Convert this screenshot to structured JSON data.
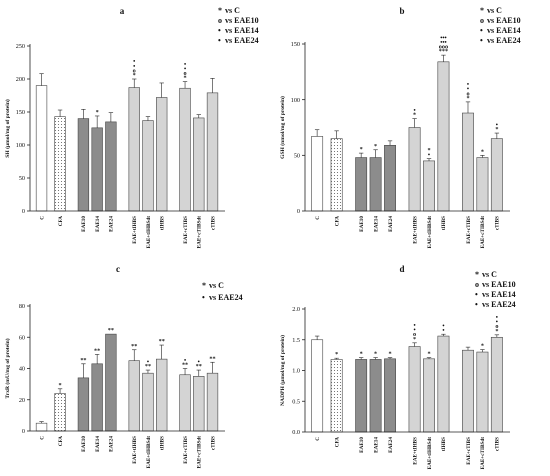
{
  "charts": [
    {
      "key": "a",
      "type": "bar",
      "panel_label": "a",
      "ylabel": "SH (µmol/mg of protein)",
      "ylim": [
        0,
        250
      ],
      "yticks": [
        0,
        50,
        100,
        150,
        200,
        250
      ],
      "legend": [
        {
          "marker": "*",
          "text": "vs C"
        },
        {
          "marker": "o",
          "text": "vs EAE10"
        },
        {
          "marker": "•",
          "text": "vs EAE14"
        },
        {
          "marker": "•",
          "text": "vs EAE24"
        }
      ],
      "categories": [
        "C",
        "CFA",
        "EAE10",
        "EAE14",
        "EAE24",
        "EAE+tIHBS",
        "EAE+tIHBSdt",
        "tIHBS",
        "EAE+cTIBS",
        "EAE+cTIBSdt",
        "cTIBS"
      ],
      "values": [
        190,
        143,
        140,
        126,
        135,
        187,
        137,
        172,
        186,
        141,
        179
      ],
      "errors": [
        18,
        10,
        14,
        18,
        14,
        13,
        6,
        22,
        10,
        5,
        22
      ],
      "styles": [
        "white",
        "dots",
        "dgray",
        "dgray",
        "dgray",
        "lgray",
        "lgray",
        "lgray",
        "lgray",
        "lgray",
        "lgray"
      ],
      "annotations": [
        "",
        "",
        "",
        "*",
        "",
        "•\n•\no\n*",
        "",
        "",
        "•\n•\no\n*",
        "",
        ""
      ]
    },
    {
      "key": "b",
      "type": "bar",
      "panel_label": "b",
      "ylabel": "GSH (nmol/mg of protein)",
      "ylim": [
        0,
        150
      ],
      "yticks": [
        0,
        50,
        100,
        150
      ],
      "legend": [
        {
          "marker": "*",
          "text": "vs C"
        },
        {
          "marker": "o",
          "text": "vs EAE10"
        },
        {
          "marker": "•",
          "text": "vs EAE14"
        },
        {
          "marker": "•",
          "text": "vs EAE24"
        }
      ],
      "categories": [
        "C",
        "CFA",
        "EAE10",
        "EAE14",
        "EAE24",
        "EAE+tIHBS",
        "EAE+tIHBSdt",
        "tIHBS",
        "EAE+cTIBS",
        "EAE+cTIBSdt",
        "cTIBS"
      ],
      "values": [
        67,
        65,
        48,
        48,
        59,
        75,
        45,
        134,
        88,
        48,
        65
      ],
      "errors": [
        6,
        7,
        4,
        7,
        4,
        8,
        2,
        6,
        10,
        2,
        5
      ],
      "styles": [
        "white",
        "dots",
        "dgray",
        "dgray",
        "dgray",
        "lgray",
        "lgray",
        "lgray",
        "lgray",
        "lgray",
        "lgray"
      ],
      "annotations": [
        "",
        "",
        "*",
        "*",
        "",
        "•\n*",
        "*\n•",
        "•••\n•••\nooo\n***",
        "•\n•\no\n*",
        "*",
        "•\n*"
      ]
    },
    {
      "key": "c",
      "type": "bar",
      "panel_label": "c",
      "ylabel": "TrxR (mU/mg of protein)",
      "ylim": [
        0,
        80
      ],
      "yticks": [
        0,
        20,
        40,
        60,
        80
      ],
      "legend": [
        {
          "marker": "*",
          "text": "vs C"
        },
        {
          "marker": "•",
          "text": "vs EAE24"
        }
      ],
      "categories": [
        "C",
        "CFA",
        "EAE10",
        "EAE14",
        "EAE24",
        "EAE+tIHBS",
        "EAE+tIHBSdt",
        "tIHBS",
        "EAE+cTIBS",
        "EAE+cTIBSdt",
        "cTIBS"
      ],
      "values": [
        5,
        24,
        34,
        43,
        62,
        45,
        37,
        46,
        36,
        35,
        37
      ],
      "errors": [
        1,
        3,
        9,
        6,
        0,
        7,
        2,
        9,
        4,
        4,
        7
      ],
      "styles": [
        "white",
        "dots",
        "dgray",
        "dgray",
        "dgray",
        "lgray",
        "lgray",
        "lgray",
        "lgray",
        "lgray",
        "lgray"
      ],
      "annotations": [
        "",
        "*",
        "**",
        "**",
        "**",
        "**",
        "•\n**",
        "**",
        "•\n**",
        "•\n**",
        "**"
      ]
    },
    {
      "key": "d",
      "type": "bar",
      "panel_label": "d",
      "ylabel": "NADPH (µmol/mg of protein)",
      "ylim": [
        0,
        2.0
      ],
      "yticks": [
        0.0,
        0.5,
        1.0,
        1.5,
        2.0
      ],
      "legend": [
        {
          "marker": "*",
          "text": "vs C"
        },
        {
          "marker": "o",
          "text": "vs EAE10"
        },
        {
          "marker": "•",
          "text": "vs EAE14"
        },
        {
          "marker": "•",
          "text": "vs EAE24"
        }
      ],
      "categories": [
        "C",
        "CFA",
        "EAE10",
        "EAE14",
        "EAE24",
        "EAE+tIHBS",
        "EAE+tIHBSdt",
        "tIHBS",
        "EAE+cTIBS",
        "EAE+cTIBSdt",
        "cTIBS"
      ],
      "values": [
        1.5,
        1.18,
        1.18,
        1.18,
        1.19,
        1.39,
        1.19,
        1.56,
        1.33,
        1.3,
        1.54
      ],
      "errors": [
        0.06,
        0.02,
        0.03,
        0.03,
        0.02,
        0.06,
        0.02,
        0.03,
        0.05,
        0.04,
        0.04
      ],
      "styles": [
        "white",
        "dots",
        "dgray",
        "dgray",
        "dgray",
        "lgray",
        "lgray",
        "lgray",
        "lgray",
        "lgray",
        "lgray"
      ],
      "annotations": [
        "",
        "*",
        "*",
        "*",
        "*",
        "•\n•\no\n*",
        "*",
        "•\n•",
        "",
        "*",
        "•\n•\no\n*"
      ]
    }
  ],
  "chart_data": [
    {
      "type": "bar",
      "title": "a",
      "ylabel": "SH (µmol/mg of protein)",
      "ylim": [
        0,
        250
      ],
      "categories": [
        "C",
        "CFA",
        "EAE10",
        "EAE14",
        "EAE24",
        "EAE+tIHBS",
        "EAE+tIHBSdt",
        "tIHBS",
        "EAE+cTIBS",
        "EAE+cTIBSdt",
        "cTIBS"
      ],
      "values": [
        190,
        143,
        140,
        126,
        135,
        187,
        137,
        172,
        186,
        141,
        179
      ]
    },
    {
      "type": "bar",
      "title": "b",
      "ylabel": "GSH (nmol/mg of protein)",
      "ylim": [
        0,
        150
      ],
      "categories": [
        "C",
        "CFA",
        "EAE10",
        "EAE14",
        "EAE24",
        "EAE+tIHBS",
        "EAE+tIHBSdt",
        "tIHBS",
        "EAE+cTIBS",
        "EAE+cTIBSdt",
        "cTIBS"
      ],
      "values": [
        67,
        65,
        48,
        48,
        59,
        75,
        45,
        134,
        88,
        48,
        65
      ]
    },
    {
      "type": "bar",
      "title": "c",
      "ylabel": "TrxR (mU/mg of protein)",
      "ylim": [
        0,
        80
      ],
      "categories": [
        "C",
        "CFA",
        "EAE10",
        "EAE14",
        "EAE24",
        "EAE+tIHBS",
        "EAE+tIHBSdt",
        "tIHBS",
        "EAE+cTIBS",
        "EAE+cTIBSdt",
        "cTIBS"
      ],
      "values": [
        5,
        24,
        34,
        43,
        62,
        45,
        37,
        46,
        36,
        35,
        37
      ]
    },
    {
      "type": "bar",
      "title": "d",
      "ylabel": "NADPH (µmol/mg of protein)",
      "ylim": [
        0,
        2.0
      ],
      "categories": [
        "C",
        "CFA",
        "EAE10",
        "EAE14",
        "EAE24",
        "EAE+tIHBS",
        "EAE+tIHBSdt",
        "tIHBS",
        "EAE+cTIBS",
        "EAE+cTIBSdt",
        "cTIBS"
      ],
      "values": [
        1.5,
        1.18,
        1.18,
        1.18,
        1.19,
        1.39,
        1.19,
        1.56,
        1.33,
        1.3,
        1.54
      ]
    }
  ],
  "colors": {
    "white": "#ffffff",
    "dgray": "#8c8c8c",
    "lgray": "#d4d4d4",
    "edge": "#444444"
  }
}
